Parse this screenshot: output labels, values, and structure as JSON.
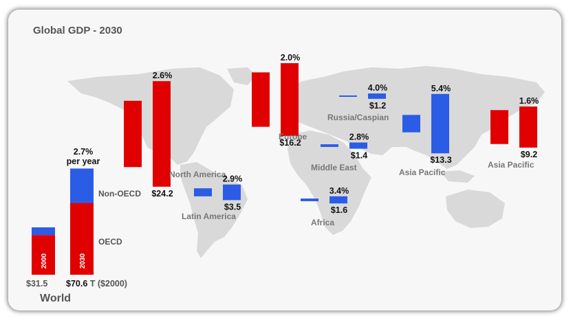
{
  "chart_data": {
    "type": "bar",
    "title": "Global GDP - 2030",
    "unit_note": "T ($2000)",
    "colors": {
      "oecd": "#e00000",
      "non_oecd": "#2b5ce6"
    },
    "regions": [
      {
        "name": "North America",
        "growth": "2.6%",
        "value_2030": "$24.2",
        "group": "oecd",
        "values": [
          15.2,
          24.2
        ]
      },
      {
        "name": "Europe",
        "growth": "2.0%",
        "value_2030": "$16.2",
        "group": "oecd",
        "values": [
          12.1,
          16.2
        ]
      },
      {
        "name": "Russia/Caspian",
        "growth": "4.0%",
        "value_2030": "$1.2",
        "group": "non_oecd",
        "values": [
          0.3,
          1.2
        ]
      },
      {
        "name": "Middle East",
        "growth": "2.8%",
        "value_2030": "$1.4",
        "group": "non_oecd",
        "values": [
          0.6,
          1.4
        ]
      },
      {
        "name": "Asia Pacific",
        "growth": "5.4%",
        "value_2030": "$13.3",
        "group": "non_oecd",
        "values": [
          3.9,
          13.3
        ]
      },
      {
        "name": "Asia Pacific",
        "growth": "1.6%",
        "value_2030": "$9.2",
        "group": "oecd",
        "values": [
          7.6,
          9.2
        ]
      },
      {
        "name": "Latin America",
        "growth": "2.9%",
        "value_2030": "$3.5",
        "group": "non_oecd",
        "values": [
          1.8,
          3.5
        ]
      },
      {
        "name": "Africa",
        "growth": "3.4%",
        "value_2030": "$1.6",
        "group": "non_oecd",
        "values": [
          0.6,
          1.6
        ]
      }
    ],
    "world": {
      "label": "World",
      "growth": "2.7%",
      "growth_sub": "per year",
      "years": [
        "2000",
        "2030"
      ],
      "totals": [
        "$31.5",
        "$70.6"
      ],
      "oecd": [
        26.4,
        47.7
      ],
      "non_oecd": [
        5.1,
        22.9
      ],
      "legend": {
        "non_oecd": "Non-OECD",
        "oecd": "OECD"
      }
    }
  }
}
